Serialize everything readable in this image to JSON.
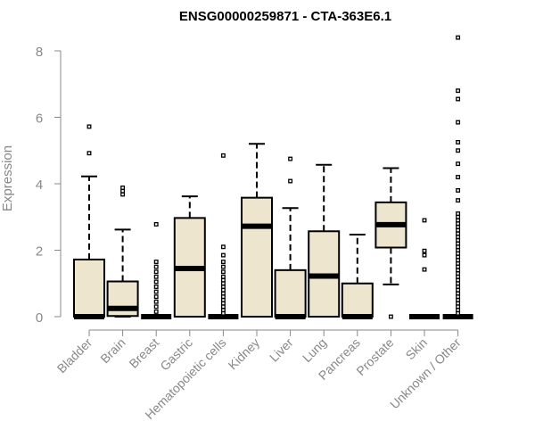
{
  "chart_data": {
    "type": "boxplot",
    "title": "ENSG00000259871 - CTA-363E6.1",
    "xlabel": "",
    "ylabel": "Expression",
    "ylim": [
      0,
      8.4
    ],
    "yticks": [
      0,
      2,
      4,
      6,
      8
    ],
    "colors": {
      "box_fill": "#ede5cd",
      "box_stroke": "#000000",
      "axis": "#888888"
    },
    "categories": [
      "Bladder",
      "Brain",
      "Breast",
      "Gastric",
      "Hematopoietic cells",
      "Kidney",
      "Liver",
      "Lung",
      "Pancreas",
      "Prostate",
      "Skin",
      "Unknown / Other"
    ],
    "boxes": [
      {
        "name": "Bladder",
        "q1": 0,
        "median": 0,
        "q3": 1.72,
        "whisker_low": 0,
        "whisker_high": 4.22,
        "outliers": [
          4.92,
          5.72
        ]
      },
      {
        "name": "Brain",
        "q1": 0.02,
        "median": 0.25,
        "q3": 1.06,
        "whisker_low": 0,
        "whisker_high": 2.62,
        "outliers": [
          3.68,
          3.78,
          3.88
        ]
      },
      {
        "name": "Breast",
        "q1": 0,
        "median": 0,
        "q3": 0,
        "whisker_low": 0,
        "whisker_high": 0,
        "outliers": [
          0.15,
          0.3,
          0.45,
          0.6,
          0.75,
          0.9,
          1.05,
          1.2,
          1.35,
          1.5,
          1.65,
          2.78
        ]
      },
      {
        "name": "Gastric",
        "q1": 0,
        "median": 1.45,
        "q3": 2.97,
        "whisker_low": 0,
        "whisker_high": 3.62,
        "outliers": []
      },
      {
        "name": "Hematopoietic cells",
        "q1": 0,
        "median": 0,
        "q3": 0,
        "whisker_low": 0,
        "whisker_high": 0,
        "outliers": [
          0.1,
          0.2,
          0.3,
          0.4,
          0.5,
          0.6,
          0.7,
          0.8,
          0.9,
          1.0,
          1.1,
          1.2,
          1.35,
          1.5,
          1.65,
          1.85,
          2.1,
          4.85
        ]
      },
      {
        "name": "Kidney",
        "q1": 0,
        "median": 2.72,
        "q3": 3.58,
        "whisker_low": 0,
        "whisker_high": 5.2,
        "outliers": []
      },
      {
        "name": "Liver",
        "q1": 0,
        "median": 0,
        "q3": 1.4,
        "whisker_low": 0,
        "whisker_high": 3.27,
        "outliers": [
          4.08,
          4.75
        ]
      },
      {
        "name": "Lung",
        "q1": 0,
        "median": 1.22,
        "q3": 2.57,
        "whisker_low": 0,
        "whisker_high": 4.57,
        "outliers": []
      },
      {
        "name": "Pancreas",
        "q1": 0,
        "median": 0,
        "q3": 1.0,
        "whisker_low": 0,
        "whisker_high": 2.47,
        "outliers": []
      },
      {
        "name": "Prostate",
        "q1": 2.08,
        "median": 2.77,
        "q3": 3.44,
        "whisker_low": 0.97,
        "whisker_high": 4.47,
        "outliers": [
          0
        ]
      },
      {
        "name": "Skin",
        "q1": 0,
        "median": 0,
        "q3": 0,
        "whisker_low": 0,
        "whisker_high": 0,
        "outliers": [
          1.42,
          1.85,
          1.98,
          2.9
        ]
      },
      {
        "name": "Unknown / Other",
        "q1": 0,
        "median": 0,
        "q3": 0,
        "whisker_low": 0,
        "whisker_high": 0,
        "outliers": [
          0.1,
          0.2,
          0.3,
          0.4,
          0.5,
          0.6,
          0.7,
          0.8,
          0.9,
          1.0,
          1.1,
          1.2,
          1.3,
          1.4,
          1.5,
          1.6,
          1.7,
          1.8,
          1.9,
          2.0,
          2.1,
          2.2,
          2.3,
          2.4,
          2.5,
          2.6,
          2.7,
          2.8,
          2.9,
          3.0,
          3.1,
          3.5,
          3.8,
          4.2,
          4.6,
          5.0,
          5.25,
          5.85,
          6.55,
          6.8,
          8.4
        ]
      }
    ]
  }
}
